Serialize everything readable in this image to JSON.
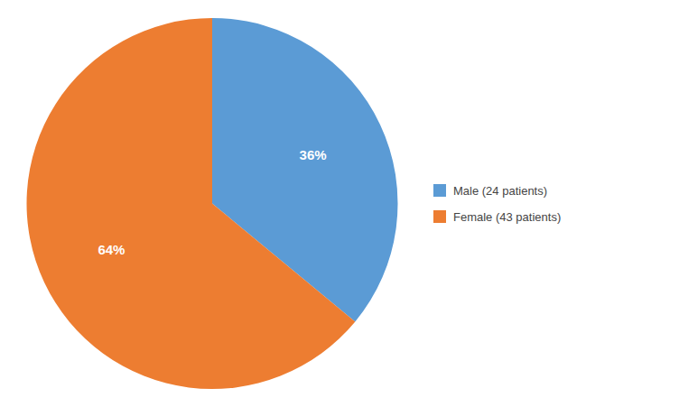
{
  "chart_data": {
    "type": "pie",
    "categories": [
      "Male (24 patients)",
      "Female (43 patients)"
    ],
    "values": [
      36,
      64
    ],
    "value_labels": [
      "36%",
      "64%"
    ],
    "colors": [
      "#5B9BD5",
      "#ED7D31"
    ],
    "data_labels": true,
    "legend": "right"
  }
}
